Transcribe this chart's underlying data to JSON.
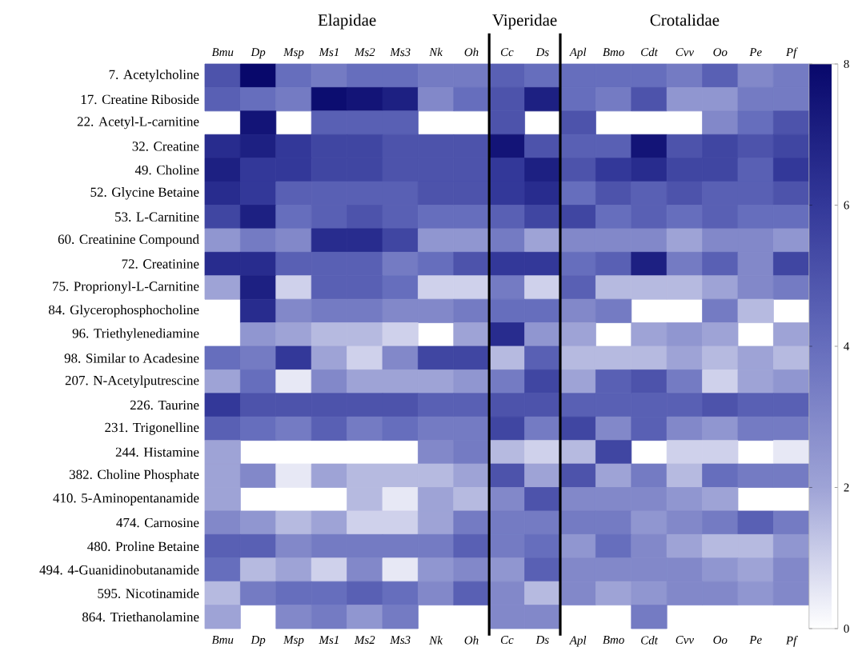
{
  "chart_data": {
    "type": "heatmap",
    "annotations": [
      "Elapidae",
      "Viperidae",
      "Crotalidae"
    ],
    "categories": [
      "Bmu",
      "Dp",
      "Msp",
      "Ms1",
      "Ms2",
      "Ms3",
      "Nk",
      "Oh",
      "Cc",
      "Ds",
      "Apl",
      "Bmo",
      "Cdt",
      "Cvv",
      "Oo",
      "Pe",
      "Pf"
    ],
    "y_categories": [
      "7.  Acetylcholine",
      "17.  Creatine Riboside",
      "22.  Acetyl-L-carnitine",
      "32.  Creatine",
      "49.  Choline",
      "52. Glycine Betaine",
      "53.  L-Carnitine",
      "60.  Creatinine Compound",
      "72.  Creatinine",
      "75.  Proprionyl-L-Carnitine",
      "84.  Glycerophosphocholine",
      "96.  Triethylenediamine",
      "98.  Similar to Acadesine",
      "207.  N-Acetylputrescine",
      "226.  Taurine",
      "231.  Trigonelline",
      "244.  Histamine",
      "382.  Choline Phosphate",
      "410.  5-Aminopentanamide",
      "474.  Carnosine",
      "480.  Proline Betaine",
      "494.  4-Guanidinobutanamide",
      "595.  Nicotinamide",
      "864.  Triethanolamine"
    ],
    "cells": [
      [
        5,
        8,
        4,
        3.5,
        4,
        4,
        3.5,
        3.5,
        4.5,
        4,
        4,
        4,
        4,
        3.5,
        4.5,
        3,
        3.5
      ],
      [
        4.5,
        4,
        3.5,
        7.8,
        7.5,
        7,
        3,
        4,
        5,
        7,
        4,
        3.5,
        5,
        2.5,
        2.5,
        3.5,
        3.5
      ],
      [
        null,
        7.5,
        null,
        4.5,
        4.5,
        4.5,
        null,
        null,
        5,
        null,
        5,
        null,
        null,
        null,
        3,
        4,
        5
      ],
      [
        6.5,
        7,
        6,
        5.5,
        5.5,
        5,
        5,
        5,
        7.5,
        5,
        4.5,
        4.5,
        7.5,
        5,
        5.5,
        5,
        5.5
      ],
      [
        7,
        6,
        6,
        5.5,
        5.5,
        5,
        5,
        5,
        6,
        7,
        5,
        6,
        6.5,
        5.5,
        5.5,
        4.5,
        6
      ],
      [
        6.5,
        6,
        4.5,
        4.5,
        4.5,
        4.5,
        5,
        5,
        6,
        6.5,
        4,
        5,
        4.5,
        5,
        4.5,
        4.5,
        5
      ],
      [
        5.5,
        7,
        4,
        4.5,
        5,
        4.5,
        4,
        4,
        4.5,
        5.5,
        5.5,
        4,
        4.5,
        4,
        4.5,
        4,
        4
      ],
      [
        2.5,
        3.5,
        3,
        6.5,
        6.5,
        5.5,
        2.5,
        2.5,
        3.5,
        2,
        3,
        3,
        3,
        2,
        3,
        3,
        2.5
      ],
      [
        6.5,
        6.5,
        4.5,
        4.5,
        4.5,
        3.5,
        4,
        5,
        6,
        6,
        4,
        4.5,
        7,
        3.5,
        4.5,
        3,
        5.5
      ],
      [
        2,
        7,
        1,
        4.5,
        4.5,
        4,
        1,
        1,
        3.5,
        1,
        4.5,
        1.5,
        1.5,
        1.5,
        2,
        3,
        3.5
      ],
      [
        null,
        6.5,
        3,
        3.5,
        3.5,
        3,
        3,
        3.5,
        4,
        4,
        3,
        3.5,
        null,
        null,
        3.5,
        1.5,
        null
      ],
      [
        null,
        2.5,
        2,
        1.5,
        1.5,
        1,
        null,
        2,
        6.5,
        2.5,
        2,
        null,
        2,
        2.5,
        2,
        null,
        2
      ],
      [
        4,
        3.5,
        6,
        2,
        1,
        3,
        5.5,
        5.5,
        1.5,
        4.5,
        1.5,
        1.5,
        1.5,
        2,
        1.5,
        2,
        1.5
      ],
      [
        2,
        4,
        0.5,
        3,
        2,
        2,
        2,
        2.5,
        3.5,
        5.5,
        2,
        4.5,
        5,
        3.5,
        1,
        2,
        2.5
      ],
      [
        6,
        5,
        5,
        5,
        5,
        5,
        4.5,
        4.5,
        5,
        5,
        4.5,
        4.5,
        4.5,
        4.5,
        5,
        4.5,
        4.5
      ],
      [
        4.5,
        4,
        3.5,
        4.5,
        3.5,
        4,
        3.5,
        3.5,
        5.5,
        3.5,
        5.5,
        3,
        4.5,
        3,
        2.5,
        3.5,
        3.5
      ],
      [
        2,
        null,
        null,
        null,
        null,
        null,
        3,
        3.5,
        1.5,
        1,
        1.5,
        5.5,
        null,
        1,
        1,
        null,
        0.5
      ],
      [
        2,
        3,
        0.5,
        2,
        1.5,
        1.5,
        1.5,
        2,
        5,
        2,
        5,
        2,
        3.5,
        1.5,
        4,
        3.5,
        3.5
      ],
      [
        2,
        null,
        null,
        null,
        1.5,
        0.5,
        2,
        1.5,
        3,
        5,
        3,
        3,
        3,
        2.5,
        2,
        null,
        null
      ],
      [
        3,
        2.5,
        1.5,
        2,
        1,
        1,
        2,
        3.5,
        3.5,
        3.5,
        3.5,
        3.5,
        2.5,
        3,
        3.5,
        4.5,
        3.5
      ],
      [
        4.5,
        4.5,
        3,
        3.5,
        3.5,
        3.5,
        3.5,
        4.5,
        3.5,
        4,
        2.5,
        4,
        3,
        2,
        1.5,
        1.5,
        2.5
      ],
      [
        4,
        1.5,
        2,
        1,
        3,
        0.5,
        2.5,
        3,
        2.5,
        4.5,
        3,
        3,
        3,
        3,
        2.5,
        2,
        3
      ],
      [
        1.5,
        3.5,
        4,
        4,
        4.5,
        4,
        3,
        4.5,
        3,
        1.5,
        3,
        2,
        2.5,
        3,
        3,
        2.5,
        3
      ],
      [
        2,
        null,
        3,
        3.5,
        2.5,
        3.5,
        null,
        null,
        3,
        3,
        null,
        null,
        3.5,
        null,
        null,
        null,
        null
      ]
    ],
    "clim": [
      0,
      8
    ],
    "cticks": [
      0,
      2,
      4,
      6,
      8
    ]
  }
}
